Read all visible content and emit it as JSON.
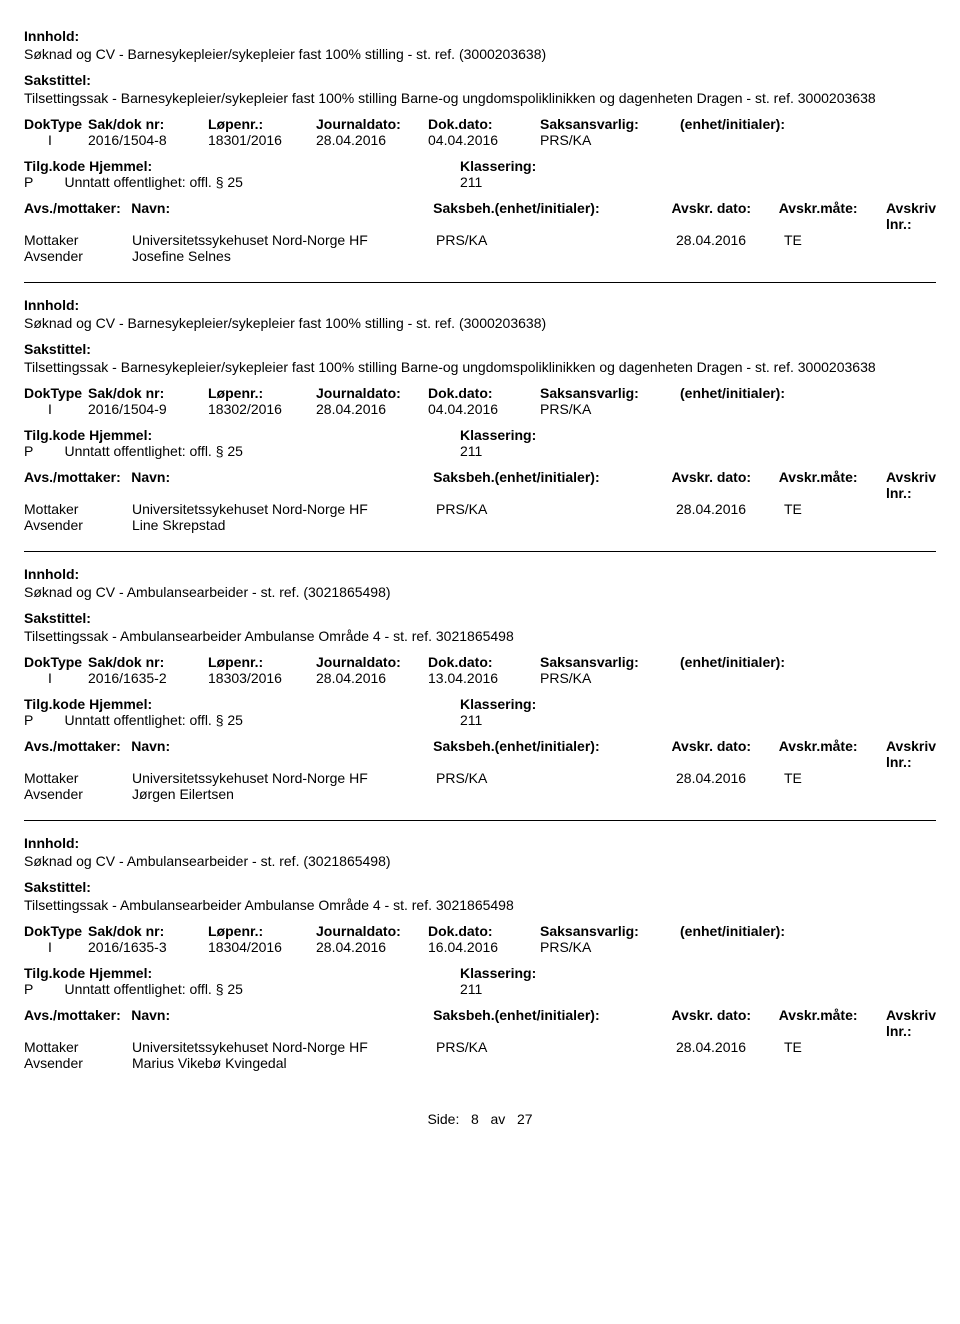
{
  "labels": {
    "innhold": "Innhold:",
    "sakstittel": "Sakstittel:",
    "doktype": "DokType",
    "sakdok": "Sak/dok nr:",
    "lopenr": "Løpenr.:",
    "journaldato": "Journaldato:",
    "dokdato": "Dok.dato:",
    "saksansvarlig": "Saksansvarlig:",
    "enhet_init": "(enhet/initialer):",
    "tilgkode": "Tilg.kode",
    "hjemmel": "Hjemmel:",
    "klassering": "Klassering:",
    "avs_mottaker": "Avs./mottaker:",
    "navn": "Navn:",
    "saksbeh": "Saksbeh.",
    "saksbeh_suffix": "(enhet/initialer):",
    "avskr_dato": "Avskr. dato:",
    "avskr_mate": "Avskr.måte:",
    "avskriv_lnr": "Avskriv lnr.:",
    "mottaker": "Mottaker",
    "avsender": "Avsender"
  },
  "hjemmel_text": "Unntatt offentlighet: offl. § 25",
  "klassering_value": "211",
  "records": [
    {
      "innhold": "Søknad og CV - Barnesykepleier/sykepleier fast 100% stilling - st. ref. (3000203638)",
      "sakstittel": "Tilsettingssak - Barnesykepleier/sykepleier fast 100% stilling Barne-og ungdomspoliklinikken og dagenheten Dragen - st. ref. 3000203638",
      "doktype": "I",
      "sakdok": "2016/1504-8",
      "lopenr": "18301/2016",
      "journaldato": "28.04.2016",
      "dokdato": "04.04.2016",
      "saksansvarlig": "PRS/KA",
      "tilgkode": "P",
      "mottaker_navn": "Universitetssykehuset Nord-Norge HF",
      "saksbeh_val": "PRS/KA",
      "avskr_dato": "28.04.2016",
      "avskr_mate": "TE",
      "avsender_navn": "Josefine Selnes"
    },
    {
      "innhold": "Søknad og CV - Barnesykepleier/sykepleier fast 100% stilling - st. ref. (3000203638)",
      "sakstittel": "Tilsettingssak - Barnesykepleier/sykepleier fast 100% stilling Barne-og ungdomspoliklinikken og dagenheten Dragen - st. ref. 3000203638",
      "doktype": "I",
      "sakdok": "2016/1504-9",
      "lopenr": "18302/2016",
      "journaldato": "28.04.2016",
      "dokdato": "04.04.2016",
      "saksansvarlig": "PRS/KA",
      "tilgkode": "P",
      "mottaker_navn": "Universitetssykehuset Nord-Norge HF",
      "saksbeh_val": "PRS/KA",
      "avskr_dato": "28.04.2016",
      "avskr_mate": "TE",
      "avsender_navn": "Line Skrepstad"
    },
    {
      "innhold": "Søknad og CV - Ambulansearbeider - st. ref. (3021865498)",
      "sakstittel": "Tilsettingssak - Ambulansearbeider Ambulanse Område 4 - st. ref. 3021865498",
      "doktype": "I",
      "sakdok": "2016/1635-2",
      "lopenr": "18303/2016",
      "journaldato": "28.04.2016",
      "dokdato": "13.04.2016",
      "saksansvarlig": "PRS/KA",
      "tilgkode": "P",
      "mottaker_navn": "Universitetssykehuset Nord-Norge HF",
      "saksbeh_val": "PRS/KA",
      "avskr_dato": "28.04.2016",
      "avskr_mate": "TE",
      "avsender_navn": "Jørgen Eilertsen"
    },
    {
      "innhold": "Søknad og CV - Ambulansearbeider - st. ref. (3021865498)",
      "sakstittel": "Tilsettingssak - Ambulansearbeider Ambulanse Område 4 - st. ref. 3021865498",
      "doktype": "I",
      "sakdok": "2016/1635-3",
      "lopenr": "18304/2016",
      "journaldato": "28.04.2016",
      "dokdato": "16.04.2016",
      "saksansvarlig": "PRS/KA",
      "tilgkode": "P",
      "mottaker_navn": "Universitetssykehuset Nord-Norge HF",
      "saksbeh_val": "PRS/KA",
      "avskr_dato": "28.04.2016",
      "avskr_mate": "TE",
      "avsender_navn": "Marius Vikebø Kvingedal"
    }
  ],
  "footer": {
    "side_label": "Side:",
    "page": "8",
    "av": "av",
    "total": "27"
  }
}
